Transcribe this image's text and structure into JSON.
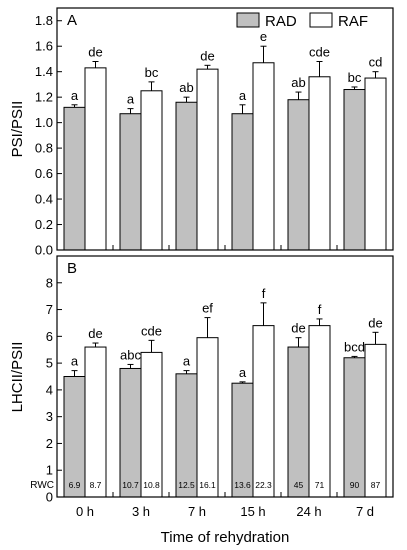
{
  "chart_data": [
    {
      "type": "bar",
      "panel_label": "A",
      "ylabel": "PSI/PSII",
      "ylim": [
        0,
        1.9
      ],
      "yticks": [
        "0.0",
        "0.2",
        "0.4",
        "0.6",
        "0.8",
        "1.0",
        "1.2",
        "1.4",
        "1.6",
        "1.8"
      ],
      "ytick_values": [
        0,
        0.2,
        0.4,
        0.6,
        0.8,
        1.0,
        1.2,
        1.4,
        1.6,
        1.8
      ],
      "categories": [
        "0 h",
        "3 h",
        "7 h",
        "15 h",
        "24 h",
        "7 d"
      ],
      "legend": {
        "placement": "top-right",
        "entries": [
          "RAD",
          "RAF"
        ]
      },
      "series": [
        {
          "name": "RAD",
          "color": "#c0c0c0",
          "values": [
            1.12,
            1.07,
            1.16,
            1.07,
            1.18,
            1.26
          ],
          "errors": [
            0.02,
            0.04,
            0.04,
            0.07,
            0.06,
            0.02
          ],
          "letters": [
            "a",
            "a",
            "ab",
            "a",
            "ab",
            "bc"
          ]
        },
        {
          "name": "RAF",
          "color": "#ffffff",
          "values": [
            1.43,
            1.25,
            1.42,
            1.47,
            1.36,
            1.35
          ],
          "errors": [
            0.05,
            0.07,
            0.03,
            0.13,
            0.12,
            0.05
          ],
          "letters": [
            "de",
            "bc",
            "de",
            "e",
            "cde",
            "cd"
          ]
        }
      ]
    },
    {
      "type": "bar",
      "panel_label": "B",
      "ylabel": "LHCII/PSII",
      "xlabel": "Time of rehydration",
      "ylim": [
        0,
        9
      ],
      "yticks": [
        "0",
        "1",
        "2",
        "3",
        "4",
        "5",
        "6",
        "7",
        "8"
      ],
      "ytick_values": [
        0,
        1,
        2,
        3,
        4,
        5,
        6,
        7,
        8
      ],
      "categories": [
        "0 h",
        "3 h",
        "7 h",
        "15 h",
        "24 h",
        "7 d"
      ],
      "series": [
        {
          "name": "RAD",
          "color": "#c0c0c0",
          "values": [
            4.5,
            4.8,
            4.6,
            4.25,
            5.6,
            5.2
          ],
          "errors": [
            0.22,
            0.15,
            0.12,
            0.05,
            0.35,
            0.05
          ],
          "letters": [
            "a",
            "abc",
            "a",
            "a",
            "de",
            "bcd"
          ],
          "rwc": [
            "6.9",
            "10.7",
            "12.5",
            "13.6",
            "45",
            "90"
          ]
        },
        {
          "name": "RAF",
          "color": "#ffffff",
          "values": [
            5.6,
            5.4,
            5.95,
            6.4,
            6.4,
            5.7
          ],
          "errors": [
            0.15,
            0.45,
            0.75,
            0.85,
            0.25,
            0.45
          ],
          "letters": [
            "de",
            "cde",
            "ef",
            "f",
            "f",
            "de"
          ],
          "rwc": [
            "8.7",
            "10.8",
            "16.1",
            "22.3",
            "71",
            "87"
          ]
        }
      ],
      "rwc_label": "RWC"
    }
  ]
}
